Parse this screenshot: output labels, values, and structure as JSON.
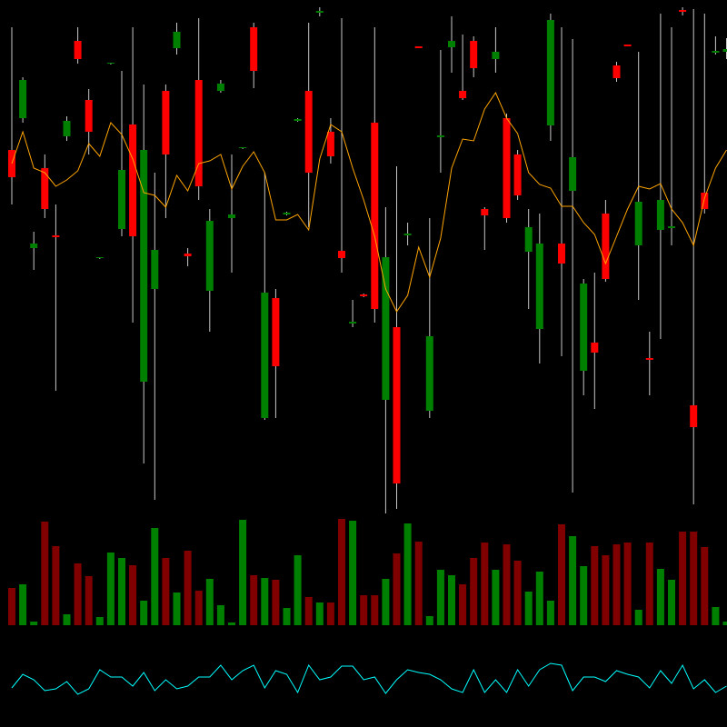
{
  "chart_data": [
    {
      "type": "candlestick",
      "open": [
        435,
        470,
        327,
        415,
        341,
        450,
        555,
        490,
        316,
        530,
        348,
        463,
        180,
        282,
        500,
        547,
        321,
        512,
        280,
        500,
        360,
        437,
        570,
        140,
        272,
        364,
        467,
        500,
        586,
        455,
        324,
        244,
        276,
        465,
        160,
        240,
        341,
        549,
        148,
        449,
        548,
        500,
        555,
        370,
        535,
        470,
        430,
        323,
        238,
        462,
        332,
        390,
        192,
        223,
        365,
        528,
        551,
        330,
        206,
        347,
        349,
        589,
        154,
        388,
        542,
        543
      ],
      "high": [
        570,
        515,
        345,
        430,
        375,
        472,
        570,
        502,
        317,
        531,
        522,
        570,
        507,
        410,
        507,
        575,
        327,
        580,
        370,
        512,
        430,
        438,
        575,
        410,
        282,
        367,
        470,
        575,
        592,
        470,
        580,
        270,
        277,
        570,
        372,
        417,
        355,
        549,
        360,
        545,
        582,
        562,
        560,
        372,
        570,
        475,
        435,
        370,
        365,
        585,
        570,
        557,
        293,
        300,
        380,
        532,
        551,
        543,
        235,
        585,
        570,
        592,
        590,
        585,
        560,
        558
      ],
      "low": [
        375,
        465,
        303,
        360,
        170,
        445,
        530,
        430,
        315,
        529,
        340,
        245,
        90,
        50,
        360,
        540,
        307,
        380,
        235,
        498,
        300,
        436,
        503,
        138,
        140,
        363,
        466,
        350,
        582,
        420,
        300,
        240,
        273,
        245,
        35,
        40,
        330,
        547,
        140,
        410,
        520,
        490,
        515,
        325,
        520,
        355,
        380,
        260,
        200,
        445,
        208,
        58,
        165,
        150,
        290,
        510,
        549,
        270,
        165,
        227,
        330,
        583,
        45,
        365,
        540,
        535
      ],
      "close": [
        405,
        512,
        332,
        370,
        339,
        467,
        535,
        455,
        317,
        531,
        413,
        340,
        435,
        325,
        430,
        565,
        318,
        395,
        357,
        508,
        364,
        438,
        522,
        278,
        197,
        366,
        469,
        410,
        588,
        428,
        316,
        246,
        274,
        260,
        317,
        68,
        343,
        547,
        230,
        451,
        555,
        492,
        525,
        363,
        543,
        360,
        385,
        350,
        332,
        578,
        310,
        427,
        288,
        212,
        293,
        514,
        549,
        378,
        204,
        380,
        351,
        587,
        130,
        370,
        544,
        546
      ],
      "up_color": "#008000",
      "down_color": "#ff0000",
      "wick_color": "#c8c8c8",
      "ylim": [
        0,
        600
      ],
      "series": [
        {
          "color": "#ffa500",
          "values": [
            420,
            455,
            415,
            410,
            395,
            402,
            412,
            442,
            428,
            465,
            452,
            425,
            388,
            385,
            372,
            407,
            390,
            420,
            423,
            430,
            392,
            417,
            433,
            410,
            358,
            358,
            364,
            347,
            425,
            463,
            455,
            415,
            380,
            340,
            282,
            257,
            275,
            328,
            295,
            338,
            415,
            447,
            445,
            480,
            498,
            470,
            453,
            410,
            397,
            393,
            373,
            373,
            355,
            342,
            310,
            340,
            370,
            395,
            392,
            398,
            370,
            355,
            330,
            382,
            415,
            435
          ]
        }
      ]
    },
    {
      "type": "bar",
      "values": [
        41,
        45,
        4,
        114,
        87,
        12,
        68,
        54,
        9,
        80,
        74,
        66,
        27,
        107,
        74,
        36,
        82,
        38,
        51,
        22,
        3,
        116,
        55,
        52,
        50,
        19,
        77,
        31,
        25,
        25,
        117,
        115,
        33,
        33,
        51,
        79,
        112,
        92,
        10,
        61,
        55,
        45,
        74,
        91,
        61,
        89,
        71,
        37,
        59,
        27,
        111,
        98,
        65,
        87,
        77,
        89,
        91,
        17,
        91,
        62,
        50,
        103,
        103,
        86,
        20,
        4
      ],
      "up_color": "#008000",
      "down_color": "#800000",
      "ylim": [
        0,
        128
      ]
    },
    {
      "type": "line",
      "color": "#00ffff",
      "values": [
        43,
        58,
        52,
        40,
        42,
        50,
        36,
        42,
        63,
        55,
        55,
        45,
        60,
        40,
        52,
        42,
        45,
        55,
        55,
        68,
        52,
        62,
        68,
        43,
        62,
        58,
        38,
        68,
        52,
        55,
        67,
        67,
        52,
        55,
        37,
        52,
        63,
        60,
        58,
        52,
        42,
        38,
        63,
        38,
        52,
        38,
        63,
        45,
        63,
        70,
        68,
        40,
        55,
        55,
        50,
        62,
        58,
        55,
        43,
        62,
        48,
        68,
        42,
        52,
        38,
        45
      ],
      "ylim": [
        0,
        100
      ]
    }
  ]
}
